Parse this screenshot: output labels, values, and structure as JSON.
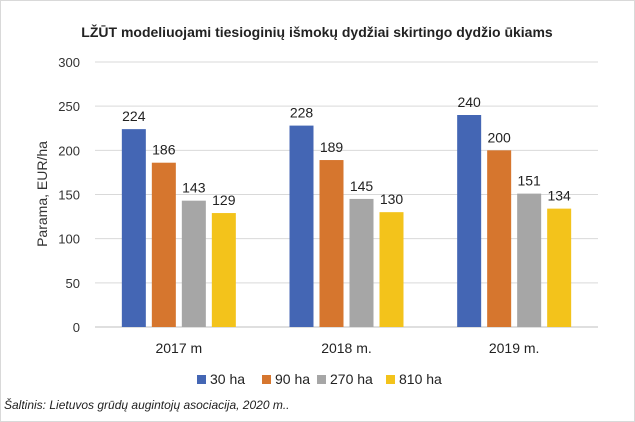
{
  "chart_data": {
    "type": "bar",
    "title": "LŽŪT modeliuojami tiesioginių išmokų dydžiai skirtingo dydžio ūkiams",
    "ylabel": "Parama, EUR/ha",
    "xlabel": "",
    "ylim": [
      0,
      300
    ],
    "yticks": [
      0,
      50,
      100,
      150,
      200,
      250,
      300
    ],
    "grid": true,
    "legend_position": "bottom",
    "categories": [
      "2017 m",
      "2018 m.",
      "2019 m."
    ],
    "series": [
      {
        "name": "30 ha",
        "color": "#4466b4",
        "values": [
          224,
          228,
          240
        ]
      },
      {
        "name": "90 ha",
        "color": "#d6762e",
        "values": [
          186,
          189,
          200
        ]
      },
      {
        "name": "270 ha",
        "color": "#a6a6a6",
        "values": [
          143,
          145,
          151
        ]
      },
      {
        "name": "810 ha",
        "color": "#f3c31b",
        "values": [
          129,
          130,
          134
        ]
      }
    ]
  },
  "source_note": "Šaltinis: Lietuvos grūdų augintojų asociacija, 2020 m.."
}
